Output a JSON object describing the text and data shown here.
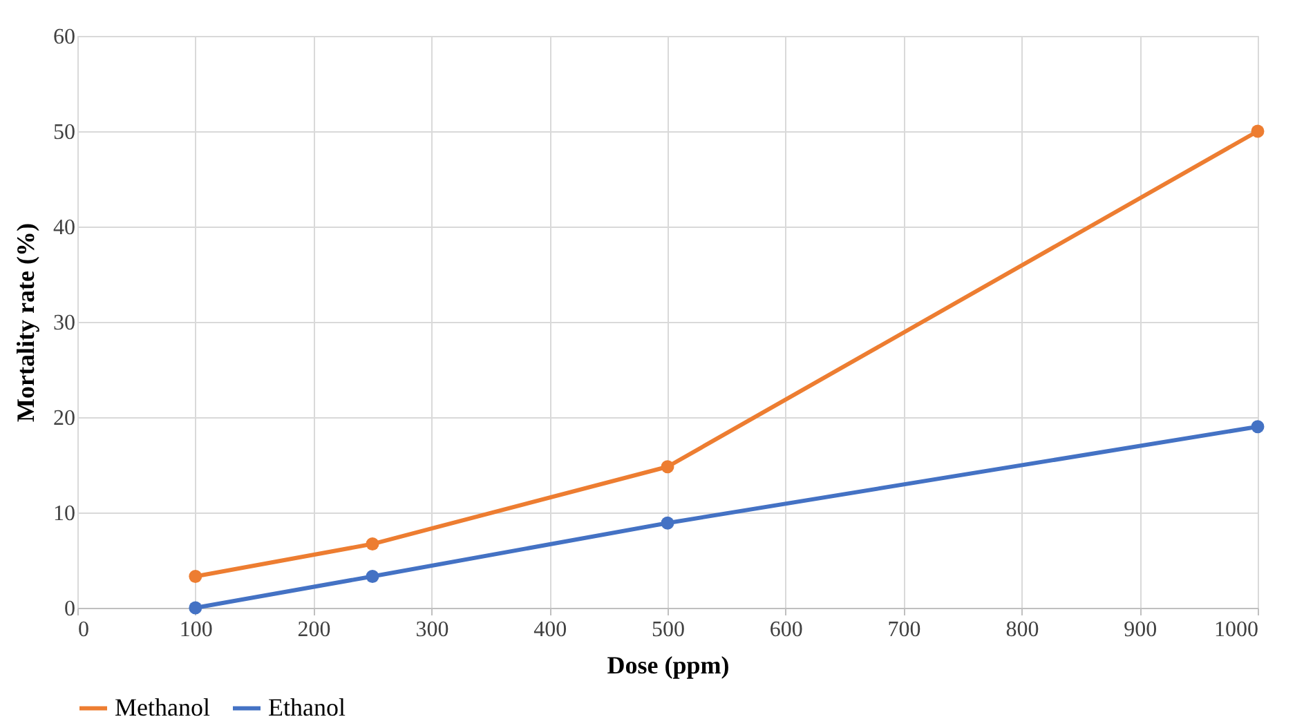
{
  "chart_data": {
    "type": "line",
    "xlabel": "Dose (ppm)",
    "ylabel": "Mortality rate (%)",
    "x": [
      100,
      250,
      500,
      1000
    ],
    "series": [
      {
        "name": "Methanol",
        "color": "#ed7d31",
        "values": [
          3.3,
          6.7,
          14.8,
          50
        ]
      },
      {
        "name": "Ethanol",
        "color": "#4472c4",
        "values": [
          0,
          3.3,
          8.9,
          19
        ]
      }
    ],
    "xlim": [
      0,
      1000
    ],
    "xticks": [
      0,
      100,
      200,
      300,
      400,
      500,
      600,
      700,
      800,
      900,
      1000
    ],
    "ylim": [
      0,
      60
    ],
    "yticks": [
      0,
      10,
      20,
      30,
      40,
      50,
      60
    ],
    "grid": true,
    "legend": "bottom",
    "marker": "circle",
    "line_style": "solid"
  }
}
